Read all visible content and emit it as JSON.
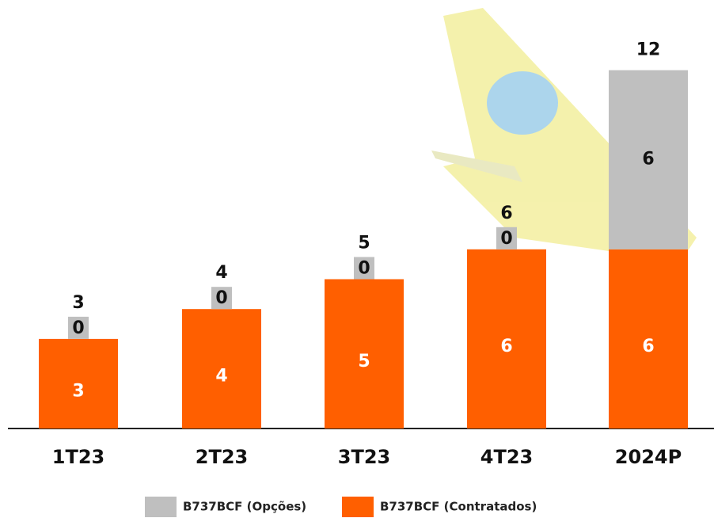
{
  "chart_data": {
    "type": "stacked_bar",
    "categories": [
      "1T23",
      "2T23",
      "3T23",
      "4T23",
      "2024P"
    ],
    "series": [
      {
        "name": "B737BCF (Contratados)",
        "color": "#ff5f00",
        "values": [
          3,
          4,
          5,
          6,
          6
        ]
      },
      {
        "name": "B737BCF (Opções)",
        "color": "#bfbfbf",
        "values": [
          0,
          0,
          0,
          0,
          6
        ]
      }
    ],
    "totals": [
      3,
      4,
      5,
      6,
      12
    ]
  }
}
